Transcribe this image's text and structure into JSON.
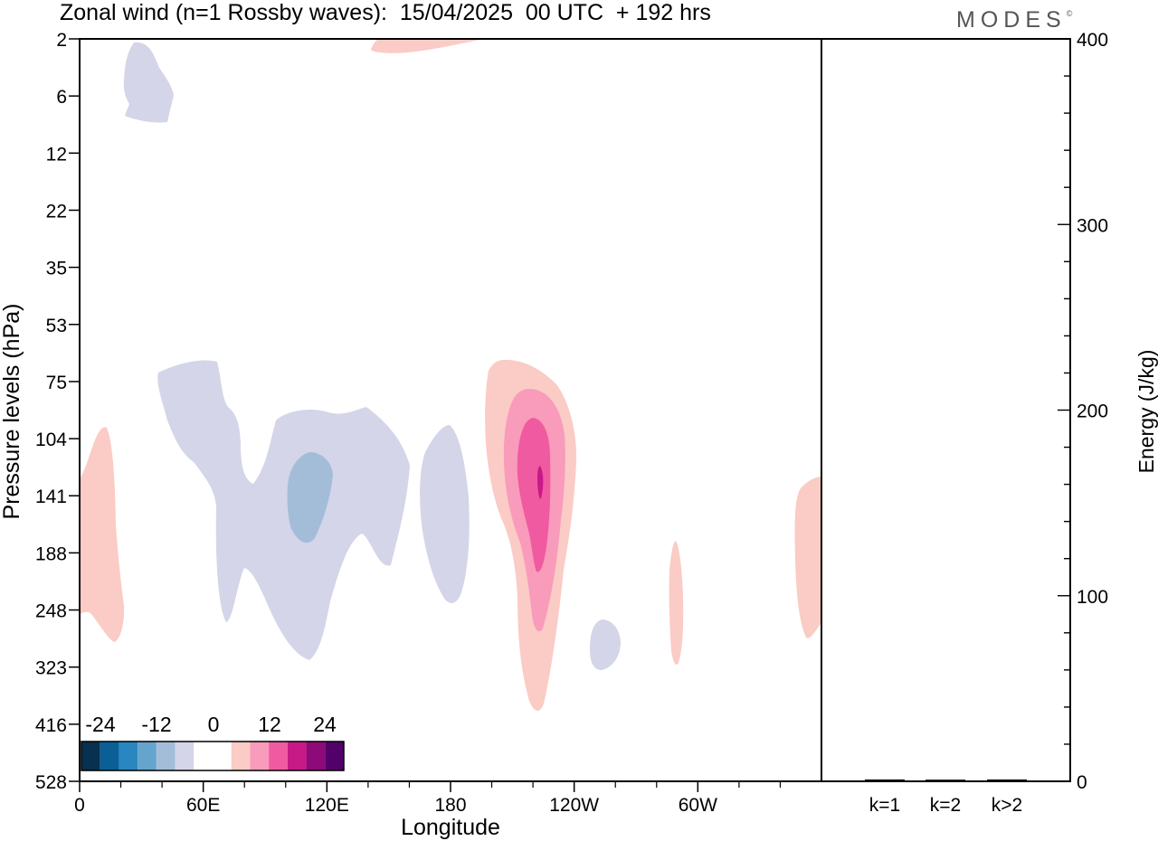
{
  "header": {
    "title": "Zonal wind (n=1 Rossby waves):  15/04/2025  00 UTC  + 192 hrs",
    "brand": "MODES",
    "brand_mark": "©"
  },
  "chart_data": [
    {
      "type": "contour",
      "xlabel": "Longitude",
      "ylabel": "Pressure levels (hPa)",
      "x_ticks": [
        "0",
        "60E",
        "120E",
        "180",
        "120W",
        "60W"
      ],
      "x_range": [
        0,
        360
      ],
      "y_ticks": [
        "2",
        "6",
        "12",
        "22",
        "35",
        "53",
        "75",
        "104",
        "141",
        "188",
        "248",
        "323",
        "416",
        "528"
      ],
      "y_scale": "log-pressure",
      "colorbar": {
        "labels": [
          "-24",
          "-12",
          "0",
          "12",
          "24"
        ],
        "colors": [
          "#08304f",
          "#0a5f96",
          "#2a86c0",
          "#65a4cc",
          "#a3bdd9",
          "#d4d5e8",
          "#ffffff",
          "#ffffff",
          "#fbcbc5",
          "#f99bbb",
          "#f05aa0",
          "#c71a87",
          "#8e0a78",
          "#52006a"
        ]
      },
      "features": [
        {
          "sign": "negative",
          "level": 1,
          "lon_center": 25,
          "pressure_range": [
            2,
            8
          ]
        },
        {
          "sign": "positive",
          "level": 1,
          "lon_center": 155,
          "pressure_range": [
            2,
            2
          ]
        },
        {
          "sign": "negative",
          "level": 1,
          "lon_center": 70,
          "pressure_range": [
            70,
            320
          ]
        },
        {
          "sign": "negative",
          "level": 2,
          "lon_center": 110,
          "pressure_range": [
            115,
            185
          ]
        },
        {
          "sign": "negative",
          "level": 1,
          "lon_center": 180,
          "pressure_range": [
            104,
            240
          ]
        },
        {
          "sign": "positive",
          "level": 1,
          "lon_center": 5,
          "pressure_range": [
            104,
            280
          ]
        },
        {
          "sign": "positive",
          "level": 1,
          "lon_center": 218,
          "pressure_range": [
            70,
            440
          ]
        },
        {
          "sign": "positive",
          "level": 2,
          "lon_center": 219,
          "pressure_range": [
            85,
            260
          ]
        },
        {
          "sign": "positive",
          "level": 3,
          "lon_center": 220,
          "pressure_range": [
            98,
            210
          ]
        },
        {
          "sign": "positive",
          "level": 4,
          "lon_center": 223,
          "pressure_range": [
            125,
            155
          ]
        },
        {
          "sign": "negative",
          "level": 1,
          "lon_center": 255,
          "pressure_range": [
            280,
            330
          ]
        },
        {
          "sign": "positive",
          "level": 1,
          "lon_center": 290,
          "pressure_range": [
            190,
            330
          ]
        },
        {
          "sign": "positive",
          "level": 1,
          "lon_center": 355,
          "pressure_range": [
            130,
            280
          ]
        }
      ]
    },
    {
      "type": "bar",
      "ylabel": "Energy (J/kg)",
      "ylim": [
        0,
        400
      ],
      "y_ticks": [
        "0",
        "100",
        "200",
        "300",
        "400"
      ],
      "categories": [
        "k=1",
        "k=2",
        "k>2"
      ],
      "values": [
        0.5,
        0.4,
        0.5
      ]
    }
  ]
}
